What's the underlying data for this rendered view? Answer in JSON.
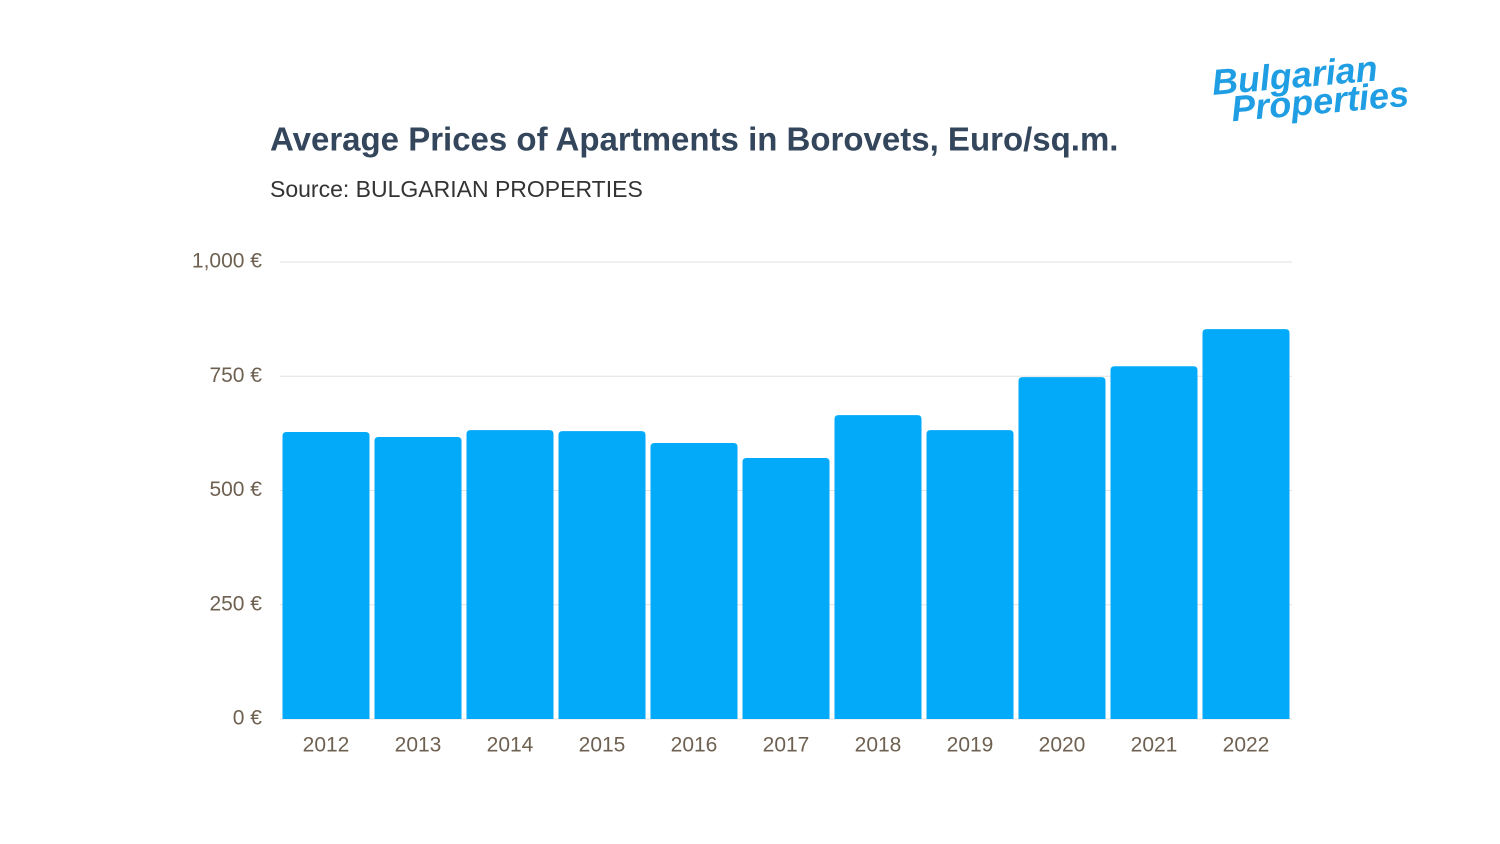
{
  "logo": {
    "line1": "Bulgarian",
    "line2": "Properties"
  },
  "chart_data": {
    "type": "bar",
    "title": "Average Prices of Apartments in Borovets, Euro/sq.m.",
    "subtitle": "Source: BULGARIAN PROPERTIES",
    "categories": [
      "2012",
      "2013",
      "2014",
      "2015",
      "2016",
      "2017",
      "2018",
      "2019",
      "2020",
      "2021",
      "2022"
    ],
    "values": [
      628,
      617,
      632,
      630,
      604,
      571,
      665,
      632,
      748,
      772,
      853
    ],
    "color": "#03aaf9",
    "ylim": [
      0,
      1000
    ],
    "yticks": [
      {
        "value": 0,
        "label": "0 €"
      },
      {
        "value": 250,
        "label": "250 €"
      },
      {
        "value": 500,
        "label": "500 €"
      },
      {
        "value": 750,
        "label": "750 €"
      },
      {
        "value": 1000,
        "label": "1,000 €"
      }
    ],
    "grid": true
  }
}
